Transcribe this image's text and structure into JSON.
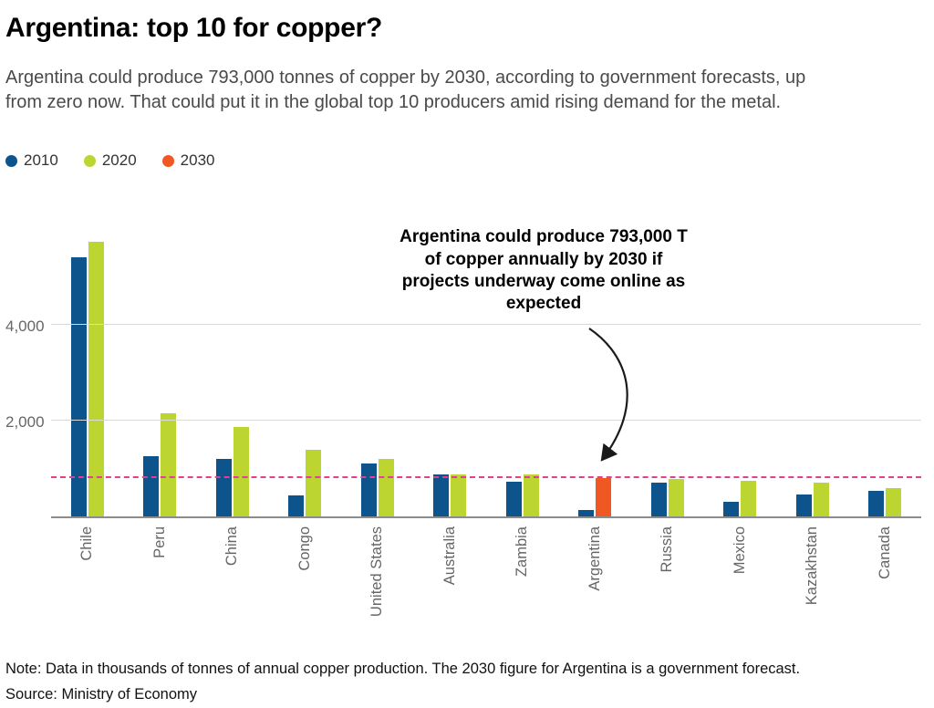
{
  "header": {
    "title": "Argentina: top 10 for copper?",
    "subtitle_lines": [
      "Argentina could produce 793,000 tonnes of copper by 2030, according to government forecasts, up",
      "from zero now. That could put it in the global top 10 producers amid rising demand for the metal."
    ]
  },
  "legend": [
    {
      "label": "2010",
      "color": "#0d538c"
    },
    {
      "label": "2020",
      "color": "#bcd531"
    },
    {
      "label": "2030",
      "color": "#f05823"
    }
  ],
  "chart_data": {
    "type": "bar",
    "title": "Argentina: top 10 for copper?",
    "unit": "thousands of tonnes of annual copper production",
    "categories": [
      "Chile",
      "Peru",
      "China",
      "Congo",
      "United States",
      "Australia",
      "Zambia",
      "Argentina",
      "Russia",
      "Mexico",
      "Kazakhstan",
      "Canada"
    ],
    "series": [
      {
        "name": "2010",
        "color": "#0d538c",
        "values": [
          5420,
          1250,
          1200,
          430,
          1110,
          870,
          730,
          140,
          700,
          300,
          450,
          525
        ]
      },
      {
        "name": "2020",
        "color": "#bcd531",
        "values": [
          5730,
          2150,
          1870,
          1400,
          1200,
          885,
          880,
          null,
          780,
          735,
          700,
          585
        ]
      },
      {
        "name": "2030",
        "color": "#f05823",
        "values": [
          null,
          null,
          null,
          null,
          null,
          null,
          null,
          793,
          null,
          null,
          null,
          null
        ]
      }
    ],
    "ylim": [
      0,
      6100
    ],
    "yticks": [
      {
        "value": 2000,
        "label": "2,000"
      },
      {
        "value": 4000,
        "label": "4,000"
      }
    ],
    "grid": "horizontal",
    "legend_position": "top-left",
    "reference_line": {
      "value": 793,
      "color": "#e0418c",
      "style": "dashed"
    },
    "annotation": {
      "lines": [
        "Argentina could produce 793,000 T",
        "of copper annually by 2030 if",
        "projects underway come online as",
        "expected"
      ],
      "arrow_target": "Argentina"
    }
  },
  "footer": {
    "note": "Note: Data in thousands of tonnes of annual copper production. The 2030 figure for Argentina is a government forecast.",
    "source": "Source: Ministry of Economy"
  }
}
